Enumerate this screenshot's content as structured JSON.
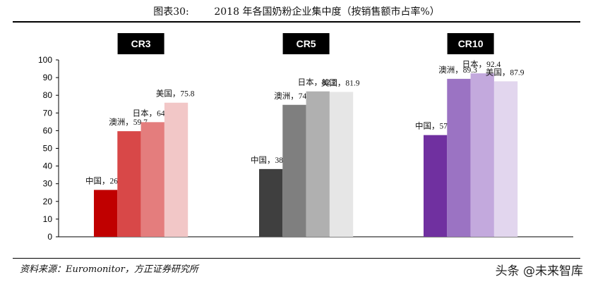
{
  "title": "图表30:        2018 年各国奶粉企业集中度（按销售额市占率%）",
  "source": "资料来源：Euromonitor，方正证券研究所",
  "watermark": "头条 @未来智库",
  "chart_data": {
    "type": "bar",
    "ylim": [
      0,
      100
    ],
    "yticks": [
      0,
      10,
      20,
      30,
      40,
      50,
      60,
      70,
      80,
      90,
      100
    ],
    "grid": false,
    "groups": [
      {
        "name": "CR3",
        "bars": [
          {
            "label": "中国",
            "value": 26.5,
            "text": "中国，26.5",
            "color": "#c00000"
          },
          {
            "label": "澳洲",
            "value": 59.7,
            "text": "澳洲，59.7",
            "color": "#d84848"
          },
          {
            "label": "日本",
            "value": 64.8,
            "text": "日本，64.8",
            "color": "#e47d7d"
          },
          {
            "label": "美国",
            "value": 75.8,
            "text": "美国，75.8",
            "color": "#f2c7c7"
          }
        ]
      },
      {
        "name": "CR5",
        "bars": [
          {
            "label": "中国",
            "value": 38.3,
            "text": "中国，38.3",
            "color": "#3f3f3f"
          },
          {
            "label": "澳洲",
            "value": 74.6,
            "text": "澳洲，74.6",
            "color": "#7f7f7f"
          },
          {
            "label": "日本",
            "value": 82.2,
            "text": "日本，82.2",
            "color": "#b0b0b0"
          },
          {
            "label": "美国",
            "value": 81.9,
            "text": "美国，81.9",
            "color": "#e6e6e6"
          }
        ]
      },
      {
        "name": "CR10",
        "bars": [
          {
            "label": "中国",
            "value": 57.5,
            "text": "中国，57.5",
            "color": "#7030a0"
          },
          {
            "label": "澳洲",
            "value": 89.3,
            "text": "澳洲，89.3",
            "color": "#9b73c3"
          },
          {
            "label": "日本",
            "value": 92.4,
            "text": "日本，92.4",
            "color": "#c3a9dd"
          },
          {
            "label": "美国",
            "value": 87.9,
            "text": "美国，87.9",
            "color": "#e2d6ee"
          }
        ]
      }
    ]
  }
}
